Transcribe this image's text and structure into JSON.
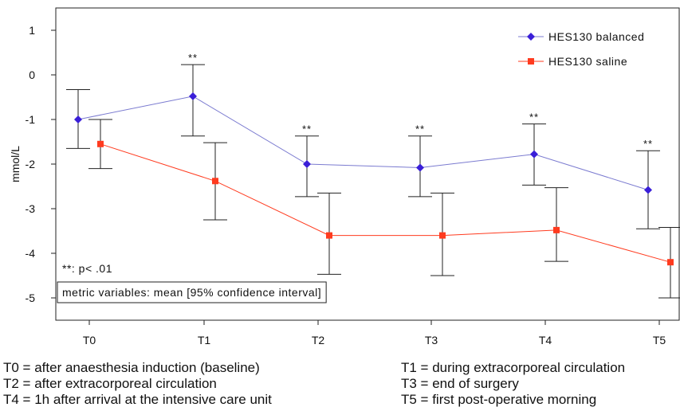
{
  "chart_data": {
    "type": "line",
    "title": "",
    "xlabel": "",
    "ylabel": "mmol/L",
    "categories": [
      "T0",
      "T1",
      "T2",
      "T3",
      "T4",
      "T5"
    ],
    "ylim": [
      -5.5,
      1.5
    ],
    "yticks": [
      1,
      0,
      -1,
      -2,
      -3,
      -4,
      -5
    ],
    "grid": false,
    "legend_position": "top-right",
    "series": [
      {
        "name": "HES130 balanced",
        "color": "#7b7bd0",
        "marker_color": "#3a1fd8",
        "marker": "diamond",
        "values": [
          -1.0,
          -0.48,
          -2.0,
          -2.08,
          -1.78,
          -2.58
        ],
        "ci_low": [
          -1.65,
          -1.37,
          -2.73,
          -2.73,
          -2.47,
          -3.45
        ],
        "ci_high": [
          -0.33,
          0.23,
          -1.37,
          -1.37,
          -1.1,
          -1.7
        ]
      },
      {
        "name": "HES130 saline",
        "color": "#ff3b1f",
        "marker_color": "#ff3b1f",
        "marker": "square",
        "values": [
          -1.55,
          -2.38,
          -3.6,
          -3.6,
          -3.48,
          -4.2
        ],
        "ci_low": [
          -2.1,
          -3.25,
          -4.47,
          -4.5,
          -4.18,
          -5.0
        ],
        "ci_high": [
          -1.0,
          -1.52,
          -2.65,
          -2.65,
          -2.53,
          -3.42
        ]
      }
    ],
    "significance_marks": [
      "",
      "**",
      "**",
      "**",
      "**",
      "**"
    ],
    "annotations": [
      "**: p< .01",
      "metric variables: mean [95% confidence interval]"
    ]
  },
  "footnotes": [
    "T0 = after anaesthesia induction (baseline)",
    "T1 = during extracorporeal circulation",
    "T2 = after extracorporeal circulation",
    "T3 = end of surgery",
    "T4 = 1h after arrival at the intensive care unit",
    "T5 = first post-operative morning"
  ]
}
